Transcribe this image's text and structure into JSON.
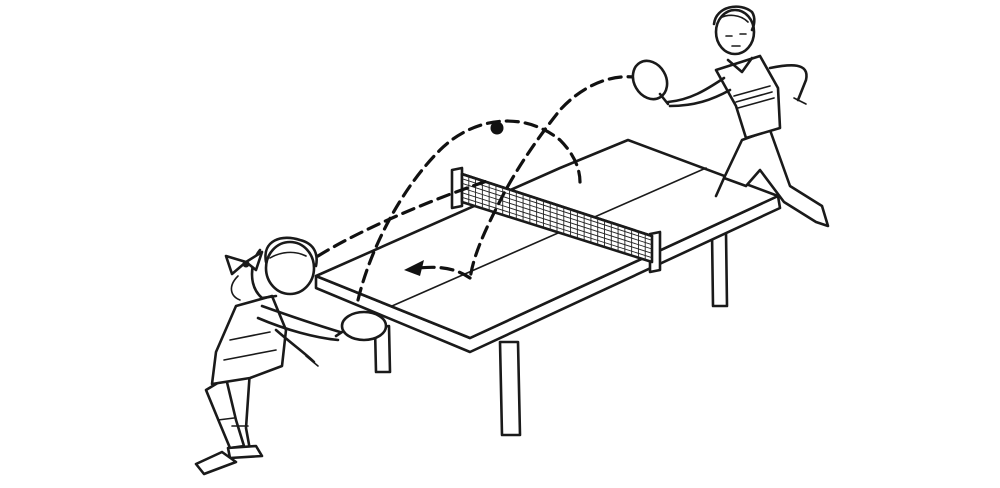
{
  "image": {
    "kind": "line-drawing",
    "content": "",
    "colors": {
      "ink": "#1a1a1a",
      "paper": "#ffffff"
    }
  },
  "icons": {
    "ball": "ball-icon",
    "arrow": "arrowhead-icon"
  }
}
